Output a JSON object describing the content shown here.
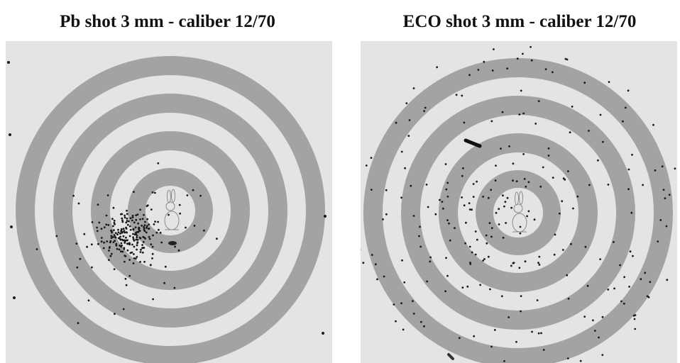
{
  "panels": [
    {
      "title": "Pb shot 3 mm - caliber 12/70"
    },
    {
      "title": "ECO shot 3 mm - caliber 12/70"
    }
  ]
}
